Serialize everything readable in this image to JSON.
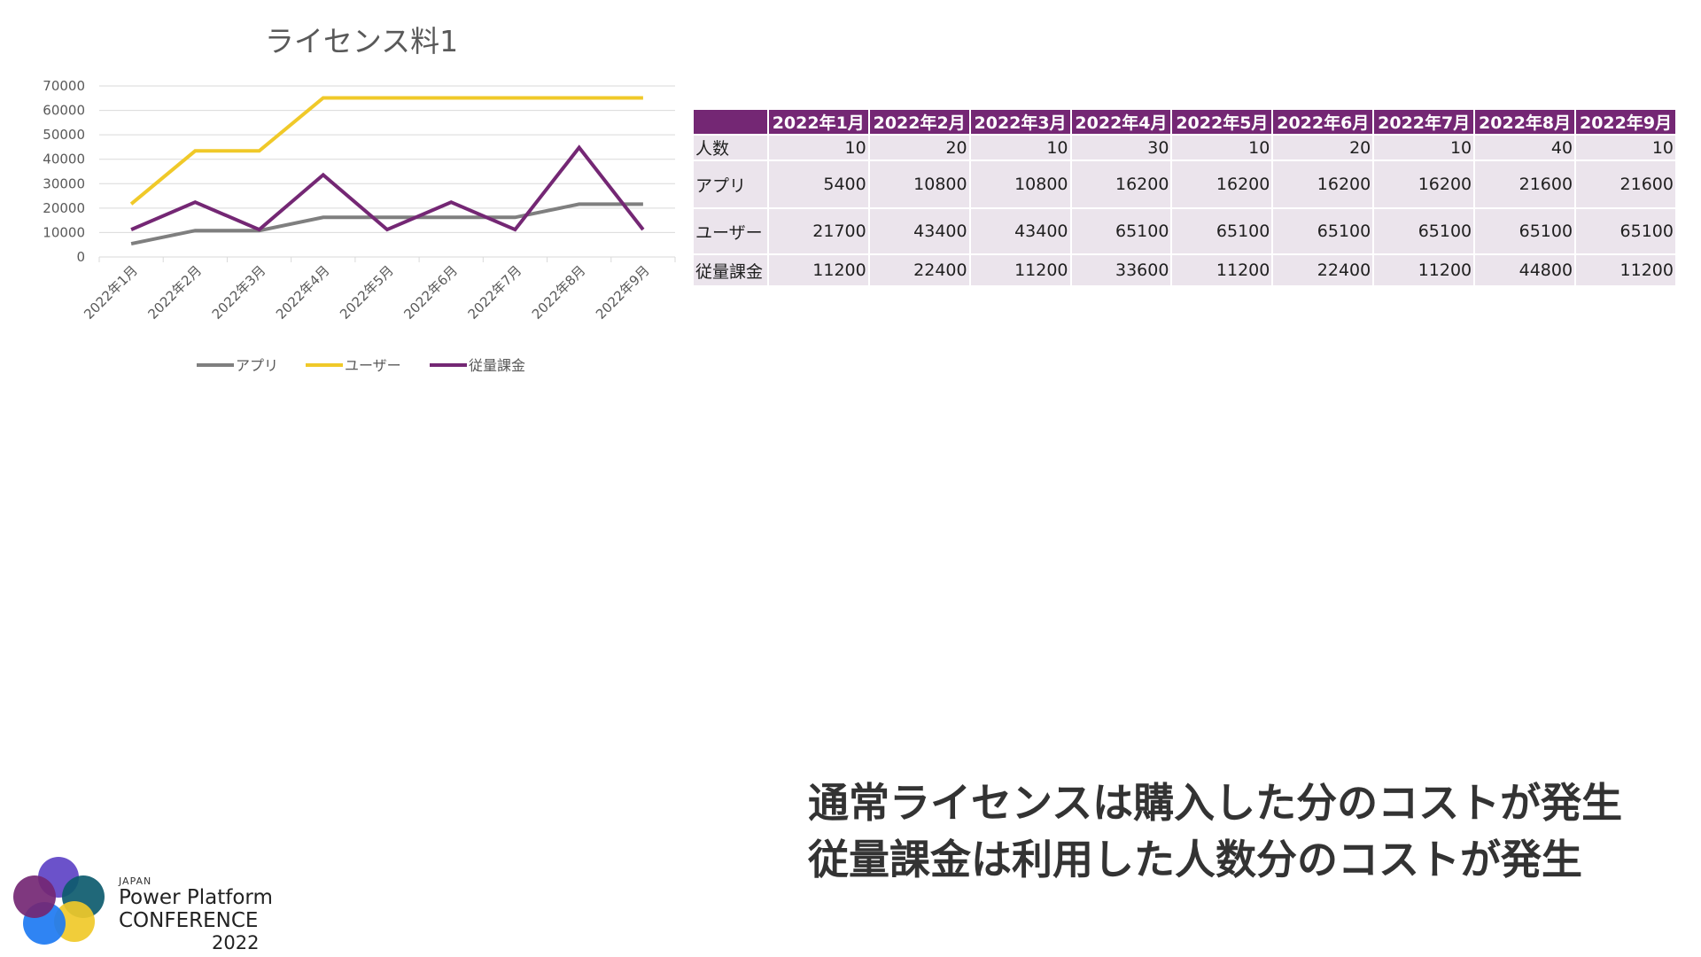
{
  "chart_data": {
    "type": "line",
    "title": "ライセンス料1",
    "categories": [
      "2022年1月",
      "2022年2月",
      "2022年3月",
      "2022年4月",
      "2022年5月",
      "2022年6月",
      "2022年7月",
      "2022年8月",
      "2022年9月"
    ],
    "ylim": [
      0,
      70000
    ],
    "yticks": [
      0,
      10000,
      20000,
      30000,
      40000,
      50000,
      60000,
      70000
    ],
    "grid": true,
    "legend_position": "bottom",
    "series": [
      {
        "name": "アプリ",
        "color": "#7f7f7f",
        "values": [
          5400,
          10800,
          10800,
          16200,
          16200,
          16200,
          16200,
          21600,
          21600
        ]
      },
      {
        "name": "ユーザー",
        "color": "#f0c929",
        "values": [
          21700,
          43400,
          43400,
          65100,
          65100,
          65100,
          65100,
          65100,
          65100
        ]
      },
      {
        "name": "従量課金",
        "color": "#742774",
        "values": [
          11200,
          22400,
          11200,
          33600,
          11200,
          22400,
          11200,
          44800,
          11200
        ]
      }
    ]
  },
  "table": {
    "header_color": "#742774",
    "columns": [
      "2022年1月",
      "2022年2月",
      "2022年3月",
      "2022年4月",
      "2022年5月",
      "2022年6月",
      "2022年7月",
      "2022年8月",
      "2022年9月"
    ],
    "rows": [
      {
        "label": "人数",
        "values": [
          "10",
          "20",
          "10",
          "30",
          "10",
          "20",
          "10",
          "40",
          "10"
        ]
      },
      {
        "label": "アプリ",
        "values": [
          "5400",
          "10800",
          "10800",
          "16200",
          "16200",
          "16200",
          "16200",
          "21600",
          "21600"
        ]
      },
      {
        "label": "ユーザー",
        "values": [
          "21700",
          "43400",
          "43400",
          "65100",
          "65100",
          "65100",
          "65100",
          "65100",
          "65100"
        ]
      },
      {
        "label": "従量課金",
        "values": [
          "11200",
          "22400",
          "11200",
          "33600",
          "11200",
          "22400",
          "11200",
          "44800",
          "11200"
        ]
      }
    ]
  },
  "caption": {
    "line1": "通常ライセンスは購入した分のコストが発生",
    "line2": "従量課金は利用した人数分のコストが発生"
  },
  "logo": {
    "japan": "JAPAN",
    "line1": "Power Platform",
    "line2": "CONFERENCE",
    "year": "2022"
  }
}
